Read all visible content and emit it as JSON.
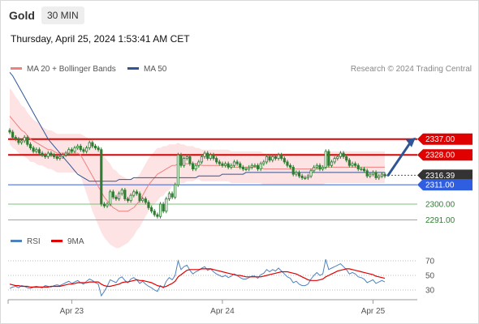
{
  "header": {
    "title": "Gold",
    "timeframe": "30 MIN",
    "datetime": "Thursday, April 25, 2024 1:53:41 AM CET"
  },
  "legend_main": [
    {
      "label": "MA 20 + Bollinger Bands",
      "color": "#f08080"
    },
    {
      "label": "MA 50",
      "color": "#2f5597"
    }
  ],
  "legend_rsi": [
    {
      "label": "RSI",
      "color": "#4f81bd"
    },
    {
      "label": "9MA",
      "color": "#e00000"
    }
  ],
  "credit": "Research © 2024 Trading Central",
  "colors": {
    "resistance": "#e00000",
    "current": "#333333",
    "pivot": "#2f5fe0",
    "support": "#7bc07b",
    "candle": "#2e7d32",
    "bands": "#fde0e0",
    "arrow": "#2f5597"
  },
  "chart_data": [
    {
      "type": "candlestick",
      "y_range": [
        2287,
        2375
      ],
      "x_ticks": [
        "Apr 23",
        "Apr 24",
        "Apr 25"
      ],
      "levels": [
        {
          "name": "resistance-2",
          "value": 2337.0,
          "label": "2337.00",
          "style": "resistance"
        },
        {
          "name": "resistance-1",
          "value": 2328.0,
          "label": "2328.00",
          "style": "resistance"
        },
        {
          "name": "last-price",
          "value": 2316.39,
          "label": "2316.39",
          "style": "current"
        },
        {
          "name": "pivot",
          "value": 2311.0,
          "label": "2311.00",
          "style": "pivot"
        },
        {
          "name": "support-1",
          "value": 2300.0,
          "label": "2300.00",
          "style": "support"
        },
        {
          "name": "support-2",
          "value": 2291.0,
          "label": "2291.00",
          "style": "support"
        }
      ],
      "close": [
        2341,
        2338,
        2337,
        2335,
        2336,
        2338,
        2334,
        2332,
        2330,
        2331,
        2329,
        2328,
        2327,
        2329,
        2328,
        2327,
        2326,
        2327,
        2328,
        2329,
        2331,
        2330,
        2332,
        2333,
        2331,
        2330,
        2332,
        2335,
        2333,
        2332,
        2331,
        2300,
        2299,
        2300,
        2307,
        2304,
        2303,
        2306,
        2308,
        2303,
        2302,
        2305,
        2307,
        2306,
        2302,
        2303,
        2301,
        2298,
        2296,
        2294,
        2293,
        2300,
        2296,
        2303,
        2306,
        2304,
        2311,
        2328,
        2322,
        2326,
        2327,
        2323,
        2320,
        2322,
        2324,
        2327,
        2329,
        2326,
        2328,
        2326,
        2324,
        2323,
        2322,
        2323,
        2321,
        2322,
        2324,
        2323,
        2321,
        2320,
        2320,
        2321,
        2322,
        2322,
        2320,
        2323,
        2324,
        2327,
        2325,
        2327,
        2326,
        2328,
        2326,
        2324,
        2322,
        2321,
        2317,
        2318,
        2316,
        2315,
        2315,
        2316,
        2319,
        2321,
        2322,
        2320,
        2321,
        2330,
        2322,
        2324,
        2326,
        2327,
        2329,
        2327,
        2325,
        2322,
        2323,
        2322,
        2320,
        2320,
        2319,
        2316,
        2317,
        2318,
        2315,
        2316,
        2317,
        2316
      ],
      "ma20": [
        2350,
        2348,
        2346,
        2344,
        2342,
        2341,
        2339,
        2337,
        2336,
        2335,
        2334,
        2333,
        2332,
        2331,
        2331,
        2330,
        2329,
        2329,
        2329,
        2329,
        2329,
        2329,
        2329,
        2329,
        2328,
        2325,
        2322,
        2319,
        2316,
        2313,
        2310,
        2307,
        2304,
        2302,
        2300,
        2298,
        2297,
        2296,
        2296,
        2296,
        2296,
        2297,
        2298,
        2300,
        2302,
        2305,
        2308,
        2311,
        2313,
        2315,
        2317,
        2318,
        2319,
        2320,
        2321,
        2322,
        2322,
        2323,
        2323,
        2323,
        2323,
        2323,
        2323,
        2323,
        2323,
        2322,
        2322,
        2322,
        2322,
        2322,
        2322,
        2322,
        2322,
        2322,
        2322,
        2321,
        2321,
        2321,
        2321,
        2321,
        2321,
        2321,
        2321,
        2321,
        2321,
        2321,
        2320,
        2320,
        2320,
        2320,
        2320,
        2320,
        2320,
        2320,
        2320,
        2320,
        2320,
        2320,
        2320,
        2320,
        2320,
        2320,
        2320,
        2320,
        2320,
        2320,
        2320,
        2321,
        2321,
        2321,
        2321,
        2321,
        2321,
        2321,
        2321,
        2321,
        2321,
        2321,
        2321,
        2321,
        2321,
        2321,
        2321,
        2321,
        2321,
        2321,
        2321,
        2321
      ],
      "ma50": [
        2375,
        2373,
        2370,
        2367,
        2364,
        2361,
        2358,
        2355,
        2352,
        2349,
        2346,
        2343,
        2340,
        2337,
        2335,
        2333,
        2331,
        2329,
        2327,
        2325,
        2323,
        2321,
        2319,
        2317,
        2316,
        2315,
        2314,
        2313,
        2313,
        2313,
        2313,
        2313,
        2313,
        2313,
        2313,
        2313,
        2313,
        2314,
        2314,
        2314,
        2314,
        2314,
        2315,
        2315,
        2315,
        2315,
        2315,
        2315,
        2315,
        2315,
        2315,
        2315,
        2315,
        2315,
        2315,
        2315,
        2315,
        2315,
        2315,
        2315,
        2315,
        2315,
        2315,
        2315,
        2316,
        2316,
        2316,
        2316,
        2316,
        2316,
        2316,
        2316,
        2317,
        2317,
        2317,
        2317,
        2317,
        2317,
        2317,
        2317,
        2318,
        2318,
        2318,
        2318,
        2318,
        2318,
        2318,
        2318,
        2318,
        2318,
        2318,
        2318,
        2318,
        2318,
        2318,
        2318,
        2318,
        2318,
        2318,
        2318,
        2318,
        2318,
        2318,
        2318,
        2318,
        2318,
        2318,
        2318,
        2318,
        2318,
        2318,
        2318,
        2318,
        2318,
        2318,
        2318,
        2318,
        2318,
        2318,
        2318,
        2318,
        2318,
        2318,
        2318,
        2318,
        2318,
        2318,
        2318
      ],
      "bb_width": [
        16,
        16,
        15,
        15,
        14,
        14,
        13,
        13,
        12,
        12,
        12,
        11,
        11,
        11,
        11,
        11,
        11,
        11,
        11,
        11,
        11,
        11,
        11,
        11,
        12,
        14,
        16,
        18,
        20,
        21,
        22,
        23,
        23,
        23,
        23,
        22,
        22,
        21,
        20,
        19,
        18,
        17,
        16,
        15,
        15,
        15,
        15,
        15,
        15,
        15,
        15,
        14,
        14,
        13,
        13,
        12,
        12,
        12,
        11,
        11,
        10,
        10,
        10,
        9,
        9,
        9,
        9,
        9,
        9,
        9,
        9,
        9,
        9,
        9,
        9,
        9,
        9,
        9,
        9,
        9,
        9,
        9,
        9,
        9,
        9,
        9,
        9,
        9,
        9,
        9,
        9,
        9,
        9,
        9,
        9,
        9,
        9,
        9,
        9,
        9,
        9,
        9,
        9,
        9,
        9,
        9,
        9,
        9,
        9,
        9,
        9,
        9,
        9,
        9,
        9,
        9,
        9,
        9,
        9,
        9,
        9,
        9,
        9,
        9,
        9,
        9,
        9,
        9
      ],
      "forecast": {
        "from": 2316.39,
        "to": 2337.0
      }
    },
    {
      "type": "line",
      "name": "rsi-panel",
      "y_range": [
        20,
        80
      ],
      "y_ticks": [
        30,
        50,
        70
      ],
      "rsi": [
        32,
        34,
        35,
        33,
        36,
        35,
        33,
        32,
        34,
        35,
        34,
        33,
        36,
        35,
        34,
        36,
        37,
        36,
        38,
        40,
        42,
        39,
        41,
        43,
        40,
        38,
        42,
        45,
        43,
        40,
        38,
        22,
        28,
        35,
        44,
        42,
        40,
        46,
        48,
        43,
        40,
        45,
        47,
        44,
        39,
        42,
        38,
        35,
        33,
        30,
        28,
        36,
        33,
        42,
        47,
        44,
        50,
        70,
        58,
        62,
        64,
        57,
        52,
        55,
        57,
        60,
        62,
        57,
        59,
        55,
        52,
        50,
        48,
        50,
        47,
        49,
        52,
        50,
        47,
        45,
        45,
        47,
        49,
        49,
        46,
        51,
        53,
        58,
        55,
        58,
        56,
        60,
        56,
        52,
        48,
        46,
        40,
        42,
        38,
        36,
        36,
        38,
        45,
        50,
        54,
        50,
        52,
        72,
        58,
        60,
        62,
        64,
        66,
        62,
        58,
        52,
        54,
        52,
        48,
        47,
        45,
        40,
        42,
        44,
        39,
        41,
        43,
        41
      ],
      "ma9": [
        38,
        37,
        36,
        36,
        35,
        35,
        35,
        34,
        34,
        34,
        34,
        34,
        34,
        34,
        35,
        35,
        35,
        35,
        36,
        37,
        38,
        38,
        39,
        40,
        40,
        40,
        40,
        41,
        41,
        41,
        41,
        38,
        36,
        35,
        35,
        36,
        37,
        38,
        40,
        41,
        41,
        42,
        43,
        44,
        43,
        43,
        42,
        41,
        40,
        38,
        36,
        35,
        34,
        35,
        37,
        39,
        42,
        48,
        51,
        54,
        57,
        58,
        58,
        58,
        58,
        59,
        59,
        59,
        59,
        58,
        57,
        56,
        55,
        54,
        53,
        52,
        51,
        50,
        50,
        49,
        48,
        48,
        48,
        48,
        48,
        48,
        49,
        50,
        51,
        52,
        53,
        54,
        55,
        55,
        55,
        54,
        53,
        52,
        50,
        48,
        46,
        44,
        43,
        43,
        43,
        44,
        45,
        48,
        50,
        52,
        54,
        56,
        57,
        58,
        59,
        59,
        58,
        57,
        56,
        55,
        54,
        53,
        52,
        51,
        49,
        48,
        47,
        46
      ]
    }
  ]
}
